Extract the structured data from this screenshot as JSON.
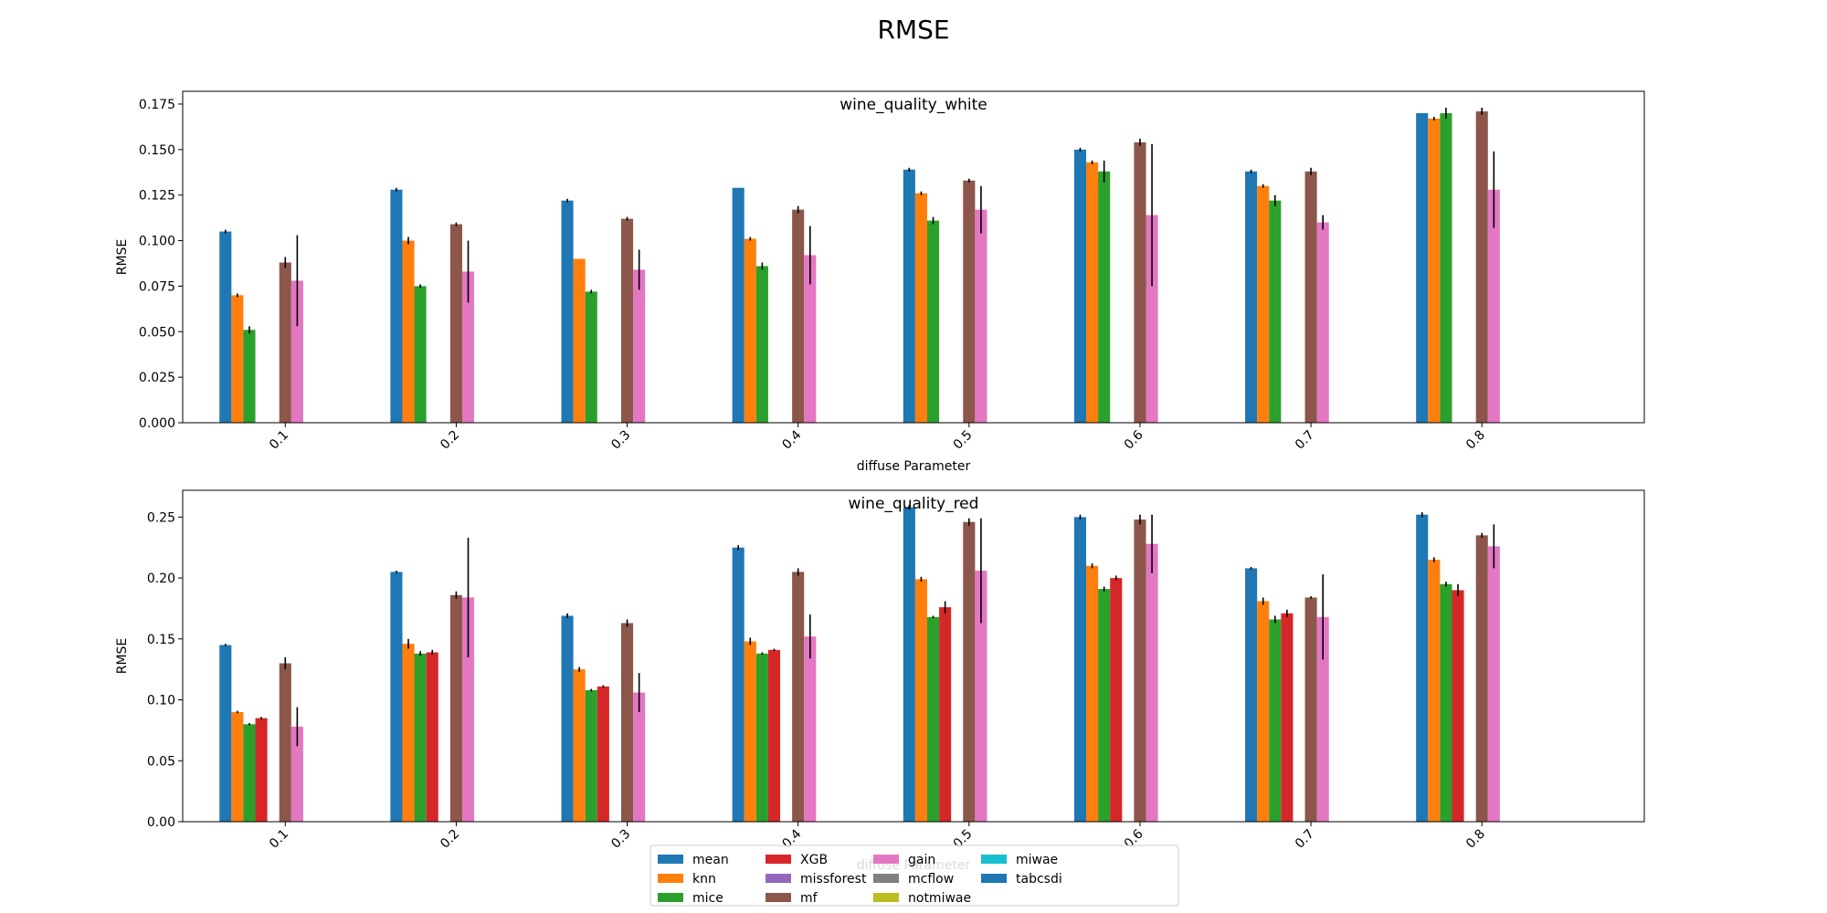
{
  "figure": {
    "suptitle": "RMSE"
  },
  "colors": {
    "mean": "#1f77b4",
    "knn": "#ff7f0e",
    "mice": "#2ca02c",
    "XGB": "#d62728",
    "missforest": "#9467bd",
    "mf": "#8c564b",
    "gain": "#e377c2",
    "mcflow": "#7f7f7f",
    "notmiwae": "#bcbd22",
    "miwae": "#17becf",
    "tabcsdi": "#1f77b4"
  },
  "legend": {
    "placement": "lower-center",
    "columns": 5,
    "entries": [
      "mean",
      "knn",
      "mice",
      "XGB",
      "missforest",
      "mf",
      "gain",
      "mcflow",
      "notmiwae",
      "miwae",
      "tabcsdi"
    ]
  },
  "chart_data": [
    {
      "type": "bar",
      "title": "wine_quality_white",
      "xlabel": "diffuse Parameter",
      "ylabel": "RMSE",
      "ylim": [
        0,
        0.182
      ],
      "yticks": [
        0.0,
        0.025,
        0.05,
        0.075,
        0.1,
        0.125,
        0.15,
        0.175
      ],
      "ytick_labels": [
        "0.000",
        "0.025",
        "0.050",
        "0.075",
        "0.100",
        "0.125",
        "0.150",
        "0.175"
      ],
      "categories": [
        "0.1",
        "0.2",
        "0.3",
        "0.4",
        "0.5",
        "0.6",
        "0.7",
        "0.8"
      ],
      "series": [
        {
          "name": "mean",
          "values": [
            0.105,
            0.128,
            0.122,
            0.129,
            0.139,
            0.15,
            0.138,
            0.17
          ],
          "errors": [
            0.001,
            0.001,
            0.001,
            0.0,
            0.001,
            0.001,
            0.001,
            0.0
          ]
        },
        {
          "name": "knn",
          "values": [
            0.07,
            0.1,
            0.09,
            0.101,
            0.126,
            0.143,
            0.13,
            0.167
          ],
          "errors": [
            0.001,
            0.002,
            0.0,
            0.001,
            0.001,
            0.001,
            0.001,
            0.001
          ]
        },
        {
          "name": "mice",
          "values": [
            0.051,
            0.075,
            0.072,
            0.086,
            0.111,
            0.138,
            0.122,
            0.17
          ],
          "errors": [
            0.002,
            0.001,
            0.001,
            0.002,
            0.002,
            0.006,
            0.003,
            0.003
          ]
        },
        {
          "name": "XGB",
          "values": [
            null,
            null,
            null,
            null,
            null,
            null,
            null,
            null
          ],
          "errors": [
            null,
            null,
            null,
            null,
            null,
            null,
            null,
            null
          ]
        },
        {
          "name": "missforest",
          "values": [
            null,
            null,
            null,
            null,
            null,
            null,
            null,
            null
          ],
          "errors": [
            null,
            null,
            null,
            null,
            null,
            null,
            null,
            null
          ]
        },
        {
          "name": "mf",
          "values": [
            0.088,
            0.109,
            0.112,
            0.117,
            0.133,
            0.154,
            0.138,
            0.171
          ],
          "errors": [
            0.003,
            0.001,
            0.001,
            0.002,
            0.001,
            0.002,
            0.002,
            0.002
          ]
        },
        {
          "name": "gain",
          "values": [
            0.078,
            0.083,
            0.084,
            0.092,
            0.117,
            0.114,
            0.11,
            0.128
          ],
          "errors": [
            0.025,
            0.017,
            0.011,
            0.016,
            0.013,
            0.039,
            0.004,
            0.021
          ]
        },
        {
          "name": "mcflow",
          "values": [
            null,
            null,
            null,
            null,
            null,
            null,
            null,
            null
          ],
          "errors": [
            null,
            null,
            null,
            null,
            null,
            null,
            null,
            null
          ]
        },
        {
          "name": "notmiwae",
          "values": [
            null,
            null,
            null,
            null,
            null,
            null,
            null,
            null
          ],
          "errors": [
            null,
            null,
            null,
            null,
            null,
            null,
            null,
            null
          ]
        },
        {
          "name": "miwae",
          "values": [
            null,
            null,
            null,
            null,
            null,
            null,
            null,
            null
          ],
          "errors": [
            null,
            null,
            null,
            null,
            null,
            null,
            null,
            null
          ]
        },
        {
          "name": "tabcsdi",
          "values": [
            null,
            null,
            null,
            null,
            null,
            null,
            null,
            null
          ],
          "errors": [
            null,
            null,
            null,
            null,
            null,
            null,
            null,
            null
          ]
        }
      ]
    },
    {
      "type": "bar",
      "title": "wine_quality_red",
      "xlabel": "diffuse Parameter",
      "ylabel": "RMSE",
      "ylim": [
        0,
        0.272
      ],
      "yticks": [
        0.0,
        0.05,
        0.1,
        0.15,
        0.2,
        0.25
      ],
      "ytick_labels": [
        "0.00",
        "0.05",
        "0.10",
        "0.15",
        "0.20",
        "0.25"
      ],
      "categories": [
        "0.1",
        "0.2",
        "0.3",
        "0.4",
        "0.5",
        "0.6",
        "0.7",
        "0.8"
      ],
      "series": [
        {
          "name": "mean",
          "values": [
            0.145,
            0.205,
            0.169,
            0.225,
            0.258,
            0.25,
            0.208,
            0.252
          ],
          "errors": [
            0.001,
            0.001,
            0.002,
            0.002,
            0.002,
            0.002,
            0.001,
            0.002
          ]
        },
        {
          "name": "knn",
          "values": [
            0.09,
            0.146,
            0.125,
            0.148,
            0.199,
            0.21,
            0.181,
            0.215
          ],
          "errors": [
            0.001,
            0.004,
            0.002,
            0.003,
            0.002,
            0.002,
            0.003,
            0.002
          ]
        },
        {
          "name": "mice",
          "values": [
            0.08,
            0.138,
            0.108,
            0.138,
            0.168,
            0.191,
            0.166,
            0.195
          ],
          "errors": [
            0.001,
            0.002,
            0.001,
            0.001,
            0.001,
            0.002,
            0.003,
            0.002
          ]
        },
        {
          "name": "XGB",
          "values": [
            0.085,
            0.139,
            0.111,
            0.141,
            0.176,
            0.2,
            0.171,
            0.19
          ],
          "errors": [
            0.001,
            0.002,
            0.001,
            0.001,
            0.005,
            0.002,
            0.003,
            0.005
          ]
        },
        {
          "name": "missforest",
          "values": [
            null,
            null,
            null,
            null,
            null,
            null,
            null,
            null
          ],
          "errors": [
            null,
            null,
            null,
            null,
            null,
            null,
            null,
            null
          ]
        },
        {
          "name": "mf",
          "values": [
            0.13,
            0.186,
            0.163,
            0.205,
            0.246,
            0.248,
            0.184,
            0.235
          ],
          "errors": [
            0.005,
            0.003,
            0.003,
            0.003,
            0.003,
            0.004,
            0.001,
            0.002
          ]
        },
        {
          "name": "gain",
          "values": [
            0.078,
            0.184,
            0.106,
            0.152,
            0.206,
            0.228,
            0.168,
            0.226
          ],
          "errors": [
            0.016,
            0.049,
            0.016,
            0.018,
            0.043,
            0.024,
            0.035,
            0.018
          ]
        },
        {
          "name": "mcflow",
          "values": [
            null,
            null,
            null,
            null,
            null,
            null,
            null,
            null
          ],
          "errors": [
            null,
            null,
            null,
            null,
            null,
            null,
            null,
            null
          ]
        },
        {
          "name": "notmiwae",
          "values": [
            null,
            null,
            null,
            null,
            null,
            null,
            null,
            null
          ],
          "errors": [
            null,
            null,
            null,
            null,
            null,
            null,
            null,
            null
          ]
        },
        {
          "name": "miwae",
          "values": [
            null,
            null,
            null,
            null,
            null,
            null,
            null,
            null
          ],
          "errors": [
            null,
            null,
            null,
            null,
            null,
            null,
            null,
            null
          ]
        },
        {
          "name": "tabcsdi",
          "values": [
            null,
            null,
            null,
            null,
            null,
            null,
            null,
            null
          ],
          "errors": [
            null,
            null,
            null,
            null,
            null,
            null,
            null,
            null
          ]
        }
      ]
    }
  ]
}
